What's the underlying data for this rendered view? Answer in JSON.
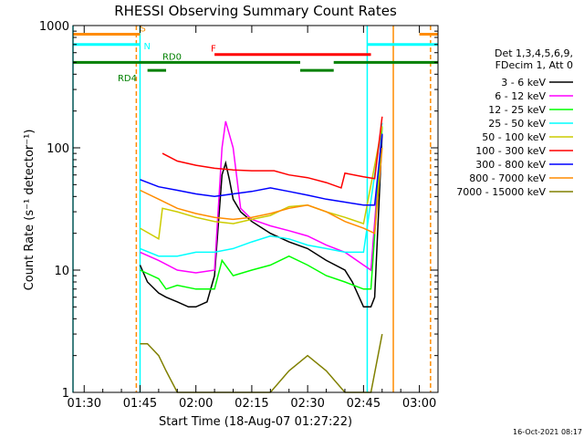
{
  "chart_data": {
    "type": "line",
    "title": "RHESSI Observing Summary Count Rates",
    "xlabel": "Start Time (18-Aug-07 01:27:22)",
    "ylabel": "Count Rate (s⁻¹ detector⁻¹)",
    "y_scale": "log",
    "ylim": [
      1,
      1000
    ],
    "xlim": [
      "01:27",
      "03:05"
    ],
    "x_ticks": [
      "01:30",
      "01:45",
      "02:00",
      "02:15",
      "02:30",
      "02:45",
      "03:00"
    ],
    "y_ticks": [
      "1",
      "10",
      "100",
      "1000"
    ],
    "footer": "16-Oct-2021 08:17",
    "legend_header": [
      "Det 1,3,4,5,6,9,",
      "FDecim 1, Att 0"
    ],
    "series": [
      {
        "name": "3 - 6 keV",
        "color": "#000000",
        "x": [
          "01:45",
          "01:47",
          "01:50",
          "01:52",
          "01:55",
          "01:58",
          "02:00",
          "02:03",
          "02:05",
          "02:07",
          "02:08",
          "02:09",
          "02:10",
          "02:12",
          "02:15",
          "02:20",
          "02:25",
          "02:30",
          "02:35",
          "02:40",
          "02:42",
          "02:45",
          "02:47",
          "02:48",
          "02:50"
        ],
        "values": [
          11,
          8,
          6.5,
          6,
          5.5,
          5,
          5,
          5.5,
          9,
          60,
          75,
          55,
          38,
          30,
          25,
          20,
          17,
          15,
          12,
          10,
          8,
          5,
          5,
          6,
          130
        ]
      },
      {
        "name": "6 - 12 keV",
        "color": "#ff00ff",
        "x": [
          "01:45",
          "01:50",
          "01:55",
          "02:00",
          "02:05",
          "02:07",
          "02:08",
          "02:10",
          "02:12",
          "02:15",
          "02:20",
          "02:25",
          "02:30",
          "02:35",
          "02:40",
          "02:45",
          "02:47",
          "02:50"
        ],
        "values": [
          14,
          12,
          10,
          9.5,
          10,
          100,
          165,
          100,
          32,
          26,
          23,
          21,
          19,
          16,
          14,
          11,
          10,
          150
        ]
      },
      {
        "name": "12 - 25 keV",
        "color": "#00ff00",
        "x": [
          "01:45",
          "01:50",
          "01:52",
          "01:55",
          "02:00",
          "02:05",
          "02:07",
          "02:10",
          "02:15",
          "02:20",
          "02:25",
          "02:30",
          "02:35",
          "02:40",
          "02:45",
          "02:47",
          "02:50"
        ],
        "values": [
          10,
          8.5,
          7,
          7.5,
          7,
          7,
          12,
          9,
          10,
          11,
          13,
          11,
          9,
          8,
          7,
          7,
          150
        ]
      },
      {
        "name": "25 - 50 keV",
        "color": "#00ffff",
        "x": [
          "01:45",
          "01:50",
          "01:55",
          "02:00",
          "02:05",
          "02:10",
          "02:15",
          "02:20",
          "02:25",
          "02:30",
          "02:35",
          "02:40",
          "02:45",
          "02:50"
        ],
        "values": [
          15,
          13,
          13,
          14,
          14,
          15,
          17,
          19,
          18,
          16,
          15,
          14,
          14,
          160
        ]
      },
      {
        "name": "50 - 100 keV",
        "color": "#cccc00",
        "x": [
          "01:45",
          "01:50",
          "01:51",
          "01:55",
          "02:00",
          "02:05",
          "02:10",
          "02:15",
          "02:20",
          "02:25",
          "02:30",
          "02:35",
          "02:40",
          "02:45",
          "02:50"
        ],
        "values": [
          22,
          18,
          32,
          30,
          27,
          25,
          24,
          26,
          28,
          33,
          34,
          30,
          27,
          24,
          150
        ]
      },
      {
        "name": "100 - 300 keV",
        "color": "#ff0000",
        "x": [
          "01:51",
          "01:55",
          "02:00",
          "02:05",
          "02:10",
          "02:15",
          "02:20",
          "02:21",
          "02:25",
          "02:30",
          "02:35",
          "02:39",
          "02:40",
          "02:45",
          "02:48",
          "02:50"
        ],
        "values": [
          90,
          78,
          72,
          68,
          66,
          65,
          65,
          65,
          60,
          57,
          52,
          47,
          62,
          58,
          56,
          180
        ]
      },
      {
        "name": "300 - 800 keV",
        "color": "#0000ff",
        "x": [
          "01:45",
          "01:50",
          "01:55",
          "02:00",
          "02:05",
          "02:10",
          "02:15",
          "02:20",
          "02:25",
          "02:30",
          "02:35",
          "02:40",
          "02:45",
          "02:48",
          "02:50"
        ],
        "values": [
          55,
          48,
          45,
          42,
          40,
          42,
          44,
          47,
          44,
          41,
          38,
          36,
          34,
          34,
          130
        ]
      },
      {
        "name": "800 - 7000 keV",
        "color": "#ff8c00",
        "x": [
          "01:45",
          "01:50",
          "01:55",
          "02:00",
          "02:05",
          "02:10",
          "02:15",
          "02:20",
          "02:25",
          "02:30",
          "02:35",
          "02:40",
          "02:45",
          "02:48",
          "02:50"
        ],
        "values": [
          45,
          38,
          32,
          29,
          27,
          26,
          27,
          29,
          32,
          34,
          30,
          25,
          22,
          20,
          100
        ]
      },
      {
        "name": "7000 - 15000 keV",
        "color": "#808000",
        "x": [
          "01:45",
          "01:47",
          "01:50",
          "01:52",
          "01:55",
          "02:00",
          "02:15",
          "02:20",
          "02:25",
          "02:30",
          "02:35",
          "02:40",
          "02:45",
          "02:47",
          "02:50"
        ],
        "values": [
          2.5,
          2.5,
          2,
          1.5,
          1,
          1,
          1,
          1,
          1.5,
          2,
          1.5,
          1,
          1,
          1,
          3
        ]
      }
    ],
    "status_bars": [
      {
        "label": "",
        "color": "#ff8c00",
        "level": 850,
        "segments": [
          [
            "01:27",
            "01:45"
          ],
          [
            "03:00",
            "03:05"
          ]
        ]
      },
      {
        "label": "S",
        "color": "#ff8c00",
        "level": 850,
        "segments": []
      },
      {
        "label": "",
        "color": "#00ffff",
        "level": 700,
        "segments": [
          [
            "01:27",
            "01:45"
          ],
          [
            "02:46",
            "03:05"
          ]
        ]
      },
      {
        "label": "N",
        "color": "#00ffff",
        "level": 700,
        "segments": []
      },
      {
        "label": "F",
        "color": "#ff0000",
        "level": 580,
        "segments": [
          [
            "02:05",
            "02:47"
          ]
        ]
      },
      {
        "label": "RD0",
        "color": "#008000",
        "level": 500,
        "segments": [
          [
            "01:27",
            "02:28"
          ],
          [
            "02:37",
            "03:05"
          ]
        ]
      },
      {
        "label": "RD4",
        "color": "#008000",
        "level": 430,
        "segments": [
          [
            "01:47",
            "01:52"
          ],
          [
            "02:28",
            "02:37"
          ]
        ]
      }
    ],
    "vertical_markers": [
      {
        "time": "01:27",
        "color": "#00ffff",
        "style": "solid"
      },
      {
        "time": "01:45",
        "color": "#00ffff",
        "style": "solid"
      },
      {
        "time": "02:46",
        "color": "#00ffff",
        "style": "solid"
      },
      {
        "time": "01:44",
        "color": "#ff8c00",
        "style": "dashed"
      },
      {
        "time": "02:53",
        "color": "#ff8c00",
        "style": "solid"
      },
      {
        "time": "03:03",
        "color": "#ff8c00",
        "style": "dashed"
      }
    ],
    "grid": false,
    "legend_position": "right"
  }
}
